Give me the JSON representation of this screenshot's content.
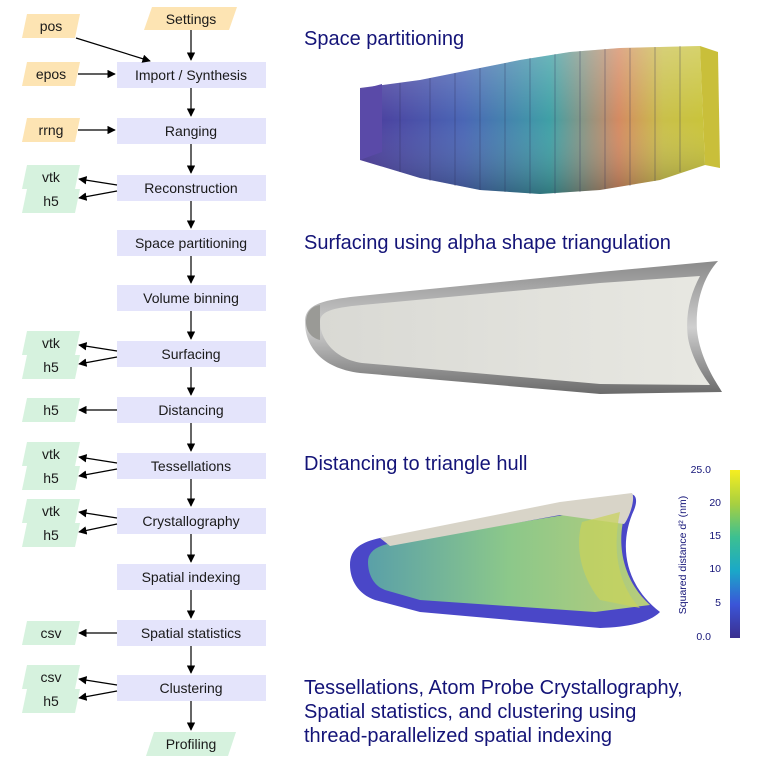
{
  "flowchart": {
    "steps": [
      "Settings",
      "Import / Synthesis",
      "Ranging",
      "Reconstruction",
      "Space partitioning",
      "Volume binning",
      "Surfacing",
      "Distancing",
      "Tessellations",
      "Crystallography",
      "Spatial indexing",
      "Spatial statistics",
      "Clustering",
      "Profiling"
    ],
    "inputs": [
      "pos",
      "epos",
      "rrng"
    ],
    "outputs": {
      "reconstruction": [
        "vtk",
        "h5"
      ],
      "surfacing": [
        "vtk",
        "h5"
      ],
      "distancing": [
        "h5"
      ],
      "tessellations": [
        "vtk",
        "h5"
      ],
      "crystallography": [
        "vtk",
        "h5"
      ],
      "spatial_statistics": [
        "csv"
      ],
      "clustering": [
        "csv",
        "h5"
      ]
    }
  },
  "captions": {
    "space_partitioning": "Space partitioning",
    "surfacing": "Surfacing using alpha shape triangulation",
    "distancing": "Distancing to triangle hull",
    "final_line1": "Tessellations, Atom Probe Crystallography,",
    "final_line2": "Spatial statistics, and clustering using",
    "final_line3": "thread-parallelized spatial indexing"
  },
  "colorbar": {
    "label": "Squared distance d² (nm)",
    "ticks": [
      "25.0",
      "20",
      "15",
      "10",
      "5",
      "0.0"
    ]
  },
  "colors": {
    "step_box": "#e4e4fb",
    "input_box": "#fde4b3",
    "output_box": "#d6f2de",
    "caption_text": "#141478"
  }
}
